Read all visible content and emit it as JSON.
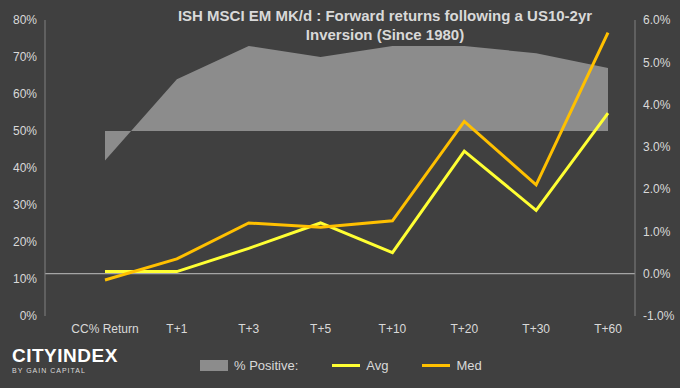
{
  "chart_data": {
    "type": "line",
    "title": "ISH MSCI EM MK/d : Forward returns following a US10-2yr Inversion (Since 1980)",
    "categories": [
      "CC% Return",
      "T+1",
      "T+3",
      "T+5",
      "T+10",
      "T+20",
      "T+30",
      "T+60"
    ],
    "series": [
      {
        "name": "% Positive:",
        "type": "area",
        "color": "#8c8c8c",
        "values": [
          42,
          64,
          73,
          70,
          73,
          73,
          71,
          67
        ]
      },
      {
        "name": "Avg",
        "type": "line",
        "axis": "y2",
        "color": "#ffff33",
        "values": [
          0.05,
          0.05,
          0.6,
          1.2,
          0.5,
          2.9,
          1.5,
          3.8
        ]
      },
      {
        "name": "Med",
        "type": "line",
        "axis": "y2",
        "color": "#ffc000",
        "values": [
          -0.15,
          0.35,
          1.2,
          1.1,
          1.25,
          3.6,
          2.1,
          5.7
        ]
      }
    ],
    "ylim": [
      0,
      80
    ],
    "yticks": [
      {
        "value": 0,
        "label": "0%"
      },
      {
        "value": 10,
        "label": "10%"
      },
      {
        "value": 20,
        "label": "20%"
      },
      {
        "value": 30,
        "label": "30%"
      },
      {
        "value": 40,
        "label": "40%"
      },
      {
        "value": 50,
        "label": "50%"
      },
      {
        "value": 60,
        "label": "60%"
      },
      {
        "value": 70,
        "label": "70%"
      },
      {
        "value": 80,
        "label": "80%"
      }
    ],
    "y2lim": [
      -1,
      6
    ],
    "y2ticks": [
      {
        "value": -1,
        "label": "-1.0%"
      },
      {
        "value": 0,
        "label": "0.0%"
      },
      {
        "value": 1,
        "label": "1.0%"
      },
      {
        "value": 2,
        "label": "2.0%"
      },
      {
        "value": 3,
        "label": "3.0%"
      },
      {
        "value": 4,
        "label": "4.0%"
      },
      {
        "value": 5,
        "label": "5.0%"
      },
      {
        "value": 6,
        "label": "6.0%"
      }
    ],
    "grid": false,
    "legend": "bottom",
    "annotations": [
      "CITYINDEX",
      "BY GAIN CAPITAL"
    ]
  }
}
